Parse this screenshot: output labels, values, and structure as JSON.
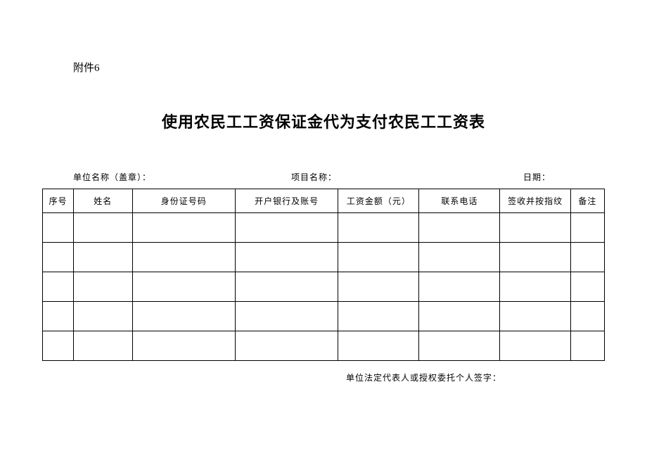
{
  "attachment_label": "附件6",
  "title": "使用农民工工资保证金代为支付农民工工资表",
  "meta": {
    "unit_label": "单位名称（盖章）：",
    "project_label": "项目名称：",
    "date_label": "日期："
  },
  "table": {
    "columns": [
      {
        "key": "seq",
        "label": "序号",
        "width": 42
      },
      {
        "key": "name",
        "label": "姓名",
        "width": 80
      },
      {
        "key": "id",
        "label": "身份证号码",
        "width": 140
      },
      {
        "key": "bank",
        "label": "开户银行及账号",
        "width": 140
      },
      {
        "key": "wage",
        "label": "工资金额（元）",
        "width": 110
      },
      {
        "key": "phone",
        "label": "联系电话",
        "width": 110
      },
      {
        "key": "sign",
        "label": "签收并按指纹",
        "width": 96
      },
      {
        "key": "remark",
        "label": "备注",
        "width": 46
      }
    ],
    "rows": [
      [
        "",
        "",
        "",
        "",
        "",
        "",
        "",
        ""
      ],
      [
        "",
        "",
        "",
        "",
        "",
        "",
        "",
        ""
      ],
      [
        "",
        "",
        "",
        "",
        "",
        "",
        "",
        ""
      ],
      [
        "",
        "",
        "",
        "",
        "",
        "",
        "",
        ""
      ],
      [
        "",
        "",
        "",
        "",
        "",
        "",
        "",
        ""
      ]
    ],
    "border_color": "#000000",
    "header_row_height": 34,
    "data_row_height": 42,
    "font_size": 12
  },
  "footer": {
    "signature_label": "单位法定代表人或授权委托个人签字："
  },
  "style": {
    "background_color": "#ffffff",
    "title_fontsize": 22,
    "title_fontweight": "bold",
    "label_fontsize": 12,
    "attachment_fontsize": 15,
    "font_family": "SimSun"
  }
}
